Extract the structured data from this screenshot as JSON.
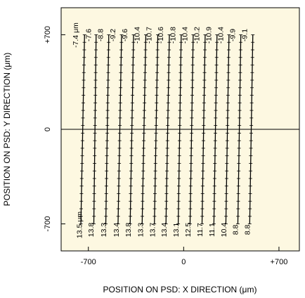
{
  "chart_data": {
    "type": "line",
    "xlabel": "POSITION ON PSD: X DIRECTION (μm)",
    "ylabel": "POSITION ON PSD: Y DIRECTION (μm)",
    "xlim": [
      -900,
      850
    ],
    "ylim": [
      900,
      -900
    ],
    "x_ticks": [
      "-700",
      "0",
      "+700"
    ],
    "y_ticks": [
      "-700",
      "0",
      "+700"
    ],
    "grid": false,
    "background": "#fdf8e1",
    "line_color": "#000000",
    "unit_label": "μm",
    "series": [
      {
        "top_label": "-7.4",
        "bottom_label": "13.5",
        "x_top": -755,
        "x_bottom": -728
      },
      {
        "top_label": "-7.6",
        "bottom_label": "13.8",
        "x_top": -660,
        "x_bottom": -643
      },
      {
        "top_label": "-8.8",
        "bottom_label": "13.3",
        "x_top": -572,
        "x_bottom": -550
      },
      {
        "top_label": "-9.2",
        "bottom_label": "13.4",
        "x_top": -482,
        "x_bottom": -456
      },
      {
        "top_label": "-9.6",
        "bottom_label": "13.8",
        "x_top": -393,
        "x_bottom": -368
      },
      {
        "top_label": "-10.4",
        "bottom_label": "13.3",
        "x_top": -305,
        "x_bottom": -278
      },
      {
        "top_label": "-10.7",
        "bottom_label": "13.7",
        "x_top": -215,
        "x_bottom": -190
      },
      {
        "top_label": "-10.6",
        "bottom_label": "13.4",
        "x_top": -130,
        "x_bottom": -105
      },
      {
        "top_label": "-10.8",
        "bottom_label": "13.1",
        "x_top": -40,
        "x_bottom": -18
      },
      {
        "top_label": "-10.4",
        "bottom_label": "12.5",
        "x_top": 47,
        "x_bottom": 70
      },
      {
        "top_label": "-10.2",
        "bottom_label": "11.7",
        "x_top": 135,
        "x_bottom": 158
      },
      {
        "top_label": "-10.9",
        "bottom_label": "11.1",
        "x_top": 222,
        "x_bottom": 245
      },
      {
        "top_label": "-10.4",
        "bottom_label": "10.4",
        "x_top": 310,
        "x_bottom": 333
      },
      {
        "top_label": "-9.9",
        "bottom_label": "8.8",
        "x_top": 398,
        "x_bottom": 420
      },
      {
        "top_label": "-9.1",
        "bottom_label": "8.8",
        "x_top": 485,
        "x_bottom": 508
      }
    ]
  }
}
